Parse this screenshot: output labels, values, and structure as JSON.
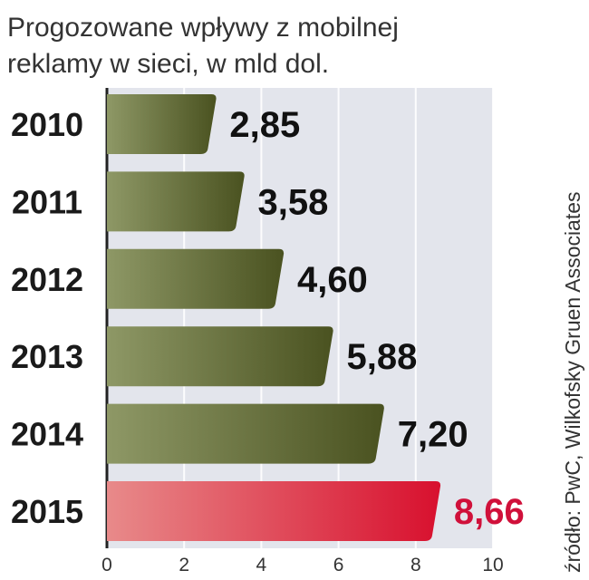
{
  "title_line1": "Progozowane wpływy z mobilnej",
  "title_line2": "reklamy w sieci, w mld dol.",
  "source": "źródło: PwC, Wilkofsky Gruen Associates",
  "colors": {
    "bar_dark": "#4a5220",
    "bar_light": "#8e9866",
    "highlight_dark": "#d8102e",
    "highlight_light": "#e88a8a",
    "plot_bg": "#e3e5ec",
    "value_text": "#111111",
    "highlight_text": "#d0103a"
  },
  "chart_data": {
    "type": "bar",
    "orientation": "horizontal",
    "categories": [
      "2010",
      "2011",
      "2012",
      "2013",
      "2014",
      "2015"
    ],
    "values": [
      2.85,
      3.58,
      4.6,
      5.88,
      7.2,
      8.66
    ],
    "value_labels": [
      "2,85",
      "3,58",
      "4,60",
      "5,88",
      "7,20",
      "8,66"
    ],
    "highlight_category": "2015",
    "xlim": [
      0,
      10
    ],
    "xticks": [
      0,
      2,
      4,
      6,
      8,
      10
    ],
    "grid": true,
    "title": "Progozowane wpływy z mobilnej reklamy w sieci, w mld dol."
  }
}
